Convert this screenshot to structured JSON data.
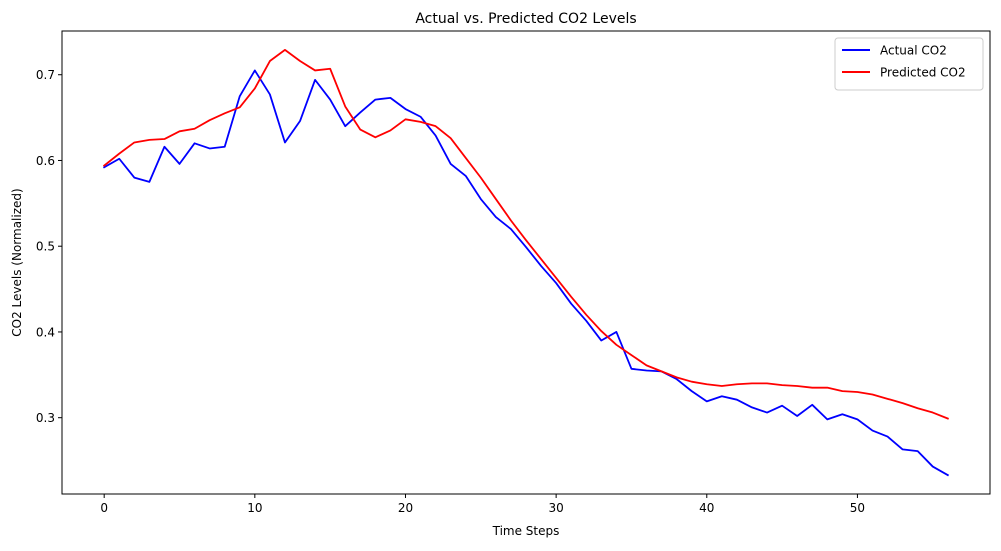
{
  "chart_data": {
    "type": "line",
    "title": "Actual vs. Predicted CO2 Levels",
    "xlabel": "Time Steps",
    "ylabel": "CO2 Levels (Normalized)",
    "xlim": [
      -2.8,
      58.8
    ],
    "ylim": [
      0.211,
      0.751
    ],
    "xticks": [
      0,
      10,
      20,
      30,
      40,
      50
    ],
    "yticks": [
      0.3,
      0.4,
      0.5,
      0.6,
      0.7
    ],
    "xtick_labels": [
      "0",
      "10",
      "20",
      "30",
      "40",
      "50"
    ],
    "ytick_labels": [
      "0.3",
      "0.4",
      "0.5",
      "0.6",
      "0.7"
    ],
    "grid": false,
    "legend_position": "top-right",
    "series": [
      {
        "name": "Actual CO2",
        "color": "#0000ff",
        "values": [
          0.592,
          0.602,
          0.58,
          0.575,
          0.616,
          0.596,
          0.62,
          0.614,
          0.616,
          0.675,
          0.705,
          0.677,
          0.621,
          0.646,
          0.694,
          0.671,
          0.64,
          0.656,
          0.671,
          0.673,
          0.66,
          0.651,
          0.629,
          0.596,
          0.582,
          0.555,
          0.534,
          0.52,
          0.499,
          0.477,
          0.457,
          0.433,
          0.413,
          0.39,
          0.4,
          0.357,
          0.355,
          0.354,
          0.345,
          0.331,
          0.319,
          0.325,
          0.321,
          0.312,
          0.306,
          0.314,
          0.302,
          0.315,
          0.298,
          0.304,
          0.298,
          0.285,
          0.278,
          0.263,
          0.261,
          0.243,
          0.233
        ]
      },
      {
        "name": "Predicted CO2",
        "color": "#ff0000",
        "values": [
          0.594,
          0.608,
          0.621,
          0.624,
          0.625,
          0.634,
          0.637,
          0.647,
          0.655,
          0.662,
          0.684,
          0.716,
          0.729,
          0.716,
          0.705,
          0.707,
          0.663,
          0.636,
          0.627,
          0.635,
          0.648,
          0.645,
          0.64,
          0.626,
          0.603,
          0.58,
          0.555,
          0.53,
          0.507,
          0.485,
          0.463,
          0.441,
          0.42,
          0.401,
          0.385,
          0.373,
          0.361,
          0.354,
          0.347,
          0.342,
          0.339,
          0.337,
          0.339,
          0.34,
          0.34,
          0.338,
          0.337,
          0.335,
          0.335,
          0.331,
          0.33,
          0.327,
          0.322,
          0.317,
          0.311,
          0.306,
          0.299
        ]
      }
    ]
  }
}
